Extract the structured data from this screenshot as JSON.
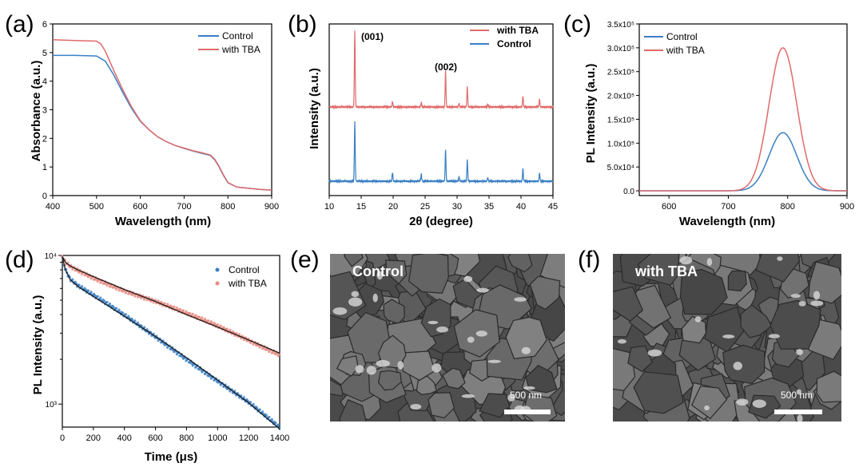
{
  "chart_data": [
    {
      "panel": "(a)",
      "type": "line",
      "xlabel": "Wavelength (nm)",
      "ylabel": "Absorbance (a.u.)",
      "xlim": [
        400,
        900
      ],
      "ylim": [
        0,
        6
      ],
      "xticks": [
        400,
        500,
        600,
        700,
        800,
        900
      ],
      "yticks": [
        0,
        1,
        2,
        3,
        4,
        5,
        6
      ],
      "legend_position": "top-right",
      "colors": {
        "Control": "#3a7fc4",
        "with TBA": "#e06a6a"
      },
      "series": [
        {
          "name": "Control",
          "x": [
            400,
            450,
            500,
            520,
            540,
            560,
            580,
            600,
            620,
            640,
            660,
            680,
            700,
            720,
            740,
            760,
            770,
            780,
            790,
            800,
            820,
            850,
            870,
            890,
            900
          ],
          "y": [
            4.9,
            4.9,
            4.88,
            4.7,
            4.2,
            3.6,
            3.05,
            2.6,
            2.3,
            2.05,
            1.88,
            1.75,
            1.65,
            1.56,
            1.48,
            1.4,
            1.25,
            1.0,
            0.7,
            0.45,
            0.3,
            0.25,
            0.22,
            0.2,
            0.2
          ]
        },
        {
          "name": "with TBA",
          "x": [
            400,
            450,
            500,
            510,
            520,
            530,
            540,
            560,
            580,
            600,
            620,
            640,
            660,
            680,
            700,
            720,
            740,
            760,
            770,
            780,
            790,
            800,
            820,
            850,
            870,
            890,
            900
          ],
          "y": [
            5.45,
            5.42,
            5.4,
            5.3,
            5.05,
            4.7,
            4.35,
            3.7,
            3.1,
            2.62,
            2.3,
            2.05,
            1.88,
            1.75,
            1.66,
            1.57,
            1.5,
            1.42,
            1.27,
            1.02,
            0.72,
            0.46,
            0.3,
            0.25,
            0.22,
            0.2,
            0.2
          ]
        }
      ]
    },
    {
      "panel": "(b)",
      "type": "line",
      "xlabel": "2θ (degree)",
      "ylabel": "Intensity (a.u.)",
      "xlim": [
        10,
        45
      ],
      "xticks": [
        10,
        15,
        20,
        25,
        30,
        35,
        40,
        45
      ],
      "legend_position": "top-right",
      "annotations": [
        {
          "text": "(001)",
          "x": 14.0
        },
        {
          "text": "(002)",
          "x": 28.2
        }
      ],
      "colors": {
        "with TBA": "#e06a6a",
        "Control": "#3a7fc4"
      },
      "peaks": {
        "positions": [
          14.0,
          19.9,
          24.4,
          28.2,
          30.3,
          31.6,
          34.8,
          40.3,
          42.9
        ],
        "with TBA": [
          1.0,
          0.07,
          0.06,
          0.48,
          0.05,
          0.27,
          0.04,
          0.14,
          0.1
        ],
        "Control": [
          0.82,
          0.12,
          0.1,
          0.44,
          0.06,
          0.3,
          0.05,
          0.17,
          0.11
        ]
      },
      "series": [
        {
          "name": "with TBA"
        },
        {
          "name": "Control"
        }
      ]
    },
    {
      "panel": "(c)",
      "type": "line",
      "xlabel": "Wavelength (nm)",
      "ylabel": "PL Intensity (a.u.)",
      "xlim": [
        550,
        900
      ],
      "ylim": [
        -10000,
        350000
      ],
      "xticks": [
        600,
        700,
        800,
        900
      ],
      "ytick_labels": [
        "0.0",
        "5.0x10⁴",
        "1.0x10⁵",
        "1.5x10⁵",
        "2.0x10⁵",
        "2.5x10⁵",
        "3.0x10⁵",
        "3.5x10⁵"
      ],
      "yticks": [
        0,
        50000,
        100000,
        150000,
        200000,
        250000,
        300000,
        350000
      ],
      "legend_position": "top-left",
      "colors": {
        "Control": "#3a7fc4",
        "with TBA": "#e06a6a"
      },
      "series": [
        {
          "name": "Control",
          "peak_x": 792,
          "peak_y": 122000,
          "fwhm": 55
        },
        {
          "name": "with TBA",
          "peak_x": 792,
          "peak_y": 300000,
          "fwhm": 55
        }
      ]
    },
    {
      "panel": "(d)",
      "type": "scatter",
      "xlabel": "Time (μs)",
      "ylabel": "PL Intensity (a.u.)",
      "xlim": [
        0,
        1400
      ],
      "ylim_log": [
        700,
        10000
      ],
      "xticks": [
        0,
        200,
        400,
        600,
        800,
        1000,
        1200,
        1400
      ],
      "ytick_labels": [
        "10⁴",
        "10³"
      ],
      "yscale": "log",
      "legend_position": "top-right",
      "colors": {
        "Control": "#3a7fc4",
        "with TBA": "#e88a80",
        "fit": "#1a1a1a"
      },
      "series": [
        {
          "name": "Control",
          "x": [
            0,
            20,
            50,
            100,
            200,
            400,
            600,
            800,
            1000,
            1200,
            1400
          ],
          "y": [
            9800,
            8000,
            6900,
            6200,
            5300,
            3900,
            2850,
            2050,
            1450,
            1020,
            680
          ]
        },
        {
          "name": "with TBA",
          "x": [
            0,
            20,
            50,
            100,
            200,
            400,
            600,
            800,
            1000,
            1200,
            1400
          ],
          "y": [
            9800,
            9000,
            8500,
            8000,
            7200,
            5900,
            4900,
            4000,
            3300,
            2700,
            2200
          ]
        }
      ]
    }
  ],
  "panels": {
    "a": "(a)",
    "b": "(b)",
    "c": "(c)",
    "d": "(d)",
    "e": "(e)",
    "f": "(f)"
  },
  "sem": {
    "e": {
      "label": "Control",
      "scale": "500 nm"
    },
    "f": {
      "label": "with TBA",
      "scale": "500 nm"
    }
  }
}
